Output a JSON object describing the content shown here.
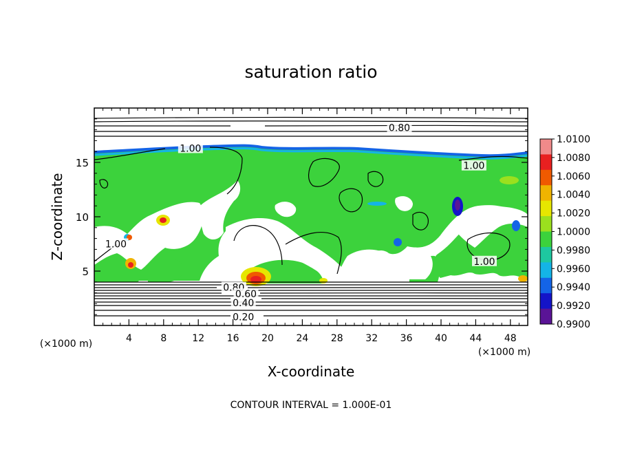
{
  "chart_data": {
    "type": "heatmap",
    "title": "saturation ratio",
    "xlabel": "X-coordinate",
    "ylabel": "Z-coordinate",
    "x_unit_left": "(×1000 m)",
    "x_unit_right": "(×1000 m)",
    "xlim": [
      0,
      50
    ],
    "ylim": [
      0,
      20
    ],
    "x_ticks": [
      4,
      8,
      12,
      16,
      20,
      24,
      28,
      32,
      36,
      40,
      44,
      48
    ],
    "y_ticks": [
      5,
      10,
      15
    ],
    "footnote": "CONTOUR INTERVAL = 1.000E-01",
    "colorbar": {
      "ticks": [
        "1.0100",
        "1.0080",
        "1.0060",
        "1.0040",
        "1.0020",
        "1.0000",
        "0.9980",
        "0.9960",
        "0.9940",
        "0.9920",
        "0.9900"
      ],
      "colors": [
        "#f08a8a",
        "#e82020",
        "#f05a00",
        "#f0b400",
        "#e6e600",
        "#9be01e",
        "#3cd23c",
        "#1ec8a0",
        "#14b4e6",
        "#1464e6",
        "#1414c8",
        "#5a1496"
      ]
    },
    "contour_labels": [
      {
        "text": "0.80",
        "x": 35.2,
        "z": 18.2
      },
      {
        "text": "1.00",
        "x": 11.1,
        "z": 16.3
      },
      {
        "text": "1.00",
        "x": 43.8,
        "z": 14.7
      },
      {
        "text": "1.00",
        "x": 2.5,
        "z": 7.5
      },
      {
        "text": "1.00",
        "x": 45.0,
        "z": 5.9
      },
      {
        "text": "0.80",
        "x": 16.1,
        "z": 3.5
      },
      {
        "text": "0.60",
        "x": 17.5,
        "z": 2.9
      },
      {
        "text": "0.40",
        "x": 17.2,
        "z": 2.1
      },
      {
        "text": "0.20",
        "x": 17.2,
        "z": 0.8
      }
    ]
  }
}
